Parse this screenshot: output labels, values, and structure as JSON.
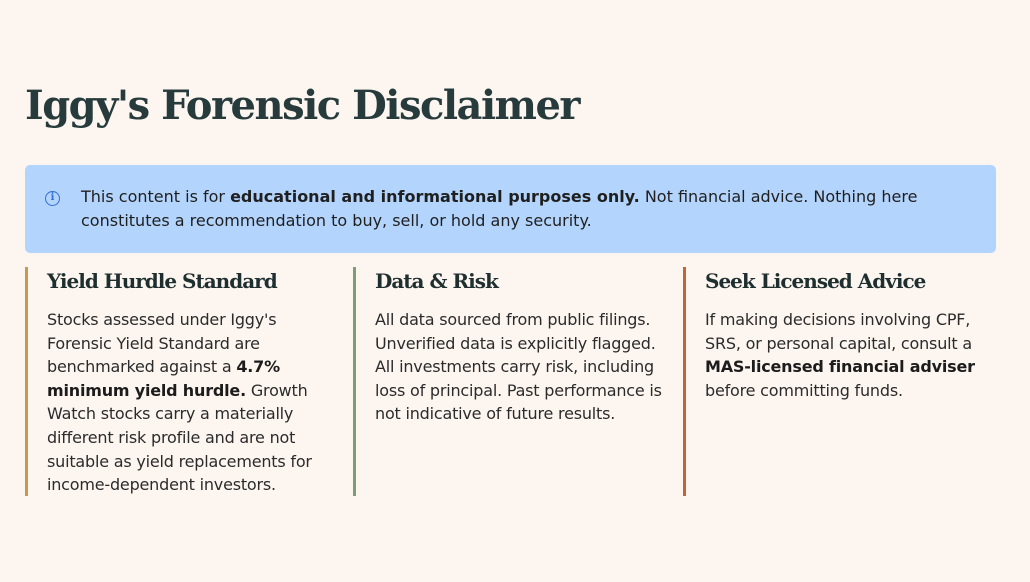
{
  "page": {
    "title": "Iggy's Forensic Disclaimer"
  },
  "notice": {
    "icon": "info-icon",
    "text_before": "This content is for ",
    "text_bold": "educational and informational purposes only.",
    "text_after": " Not financial advice. Nothing here constitutes a recommendation to buy, sell, or hold any security.",
    "background_color": "#b3d4fc"
  },
  "columns": [
    {
      "heading": "Yield Hurdle Standard",
      "accent_color": "#c49a52",
      "text_1": "Stocks assessed under Iggy's Forensic Yield Standard are benchmarked against a ",
      "text_bold": "4.7% minimum yield hurdle.",
      "text_2": " Growth Watch stocks carry a materially different risk profile and are not suitable as yield replacements for income-dependent investors."
    },
    {
      "heading": "Data & Risk",
      "accent_color": "#7a9e78",
      "text_1": "All data sourced from public filings. Unverified data is explicitly flagged. All investments carry risk, including loss of principal. Past performance is not indicative of future results.",
      "text_bold": "",
      "text_2": ""
    },
    {
      "heading": "Seek Licensed Advice",
      "accent_color": "#c4623e",
      "text_1": "If making decisions involving CPF, SRS, or personal capital, consult a ",
      "text_bold": "MAS-licensed financial adviser",
      "text_2": " before committing funds."
    }
  ]
}
